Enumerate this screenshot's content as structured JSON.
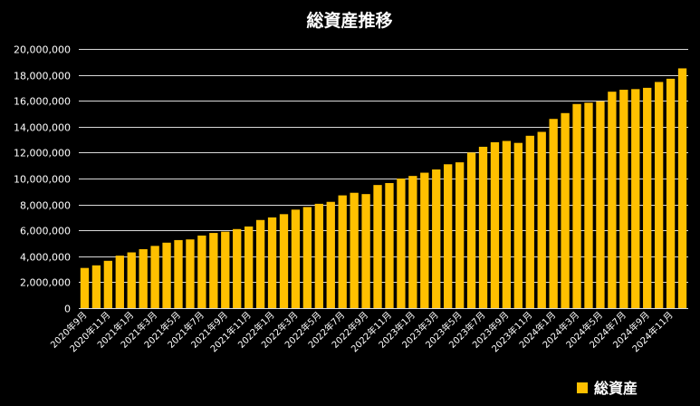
{
  "chart_data": {
    "type": "bar",
    "title": "総資産推移",
    "xlabel": "",
    "ylabel": "",
    "ylim": [
      0,
      20000000
    ],
    "yticks": [
      "0",
      "2,000,000",
      "4,000,000",
      "6,000,000",
      "8,000,000",
      "10,000,000",
      "12,000,000",
      "14,000,000",
      "16,000,000",
      "18,000,000",
      "20,000,000"
    ],
    "grid": true,
    "legend_position": "bottom-right",
    "bar_color": "#FFC000",
    "categories": [
      "2020年9月",
      "2020年10月",
      "2020年11月",
      "2020年12月",
      "2021年1月",
      "2021年2月",
      "2021年3月",
      "2021年4月",
      "2021年5月",
      "2021年6月",
      "2021年7月",
      "2021年8月",
      "2021年9月",
      "2021年10月",
      "2021年11月",
      "2021年12月",
      "2022年1月",
      "2022年2月",
      "2022年3月",
      "2022年4月",
      "2022年5月",
      "2022年6月",
      "2022年7月",
      "2022年8月",
      "2022年9月",
      "2022年10月",
      "2022年11月",
      "2022年12月",
      "2023年1月",
      "2023年2月",
      "2023年3月",
      "2023年4月",
      "2023年5月",
      "2023年6月",
      "2023年7月",
      "2023年8月",
      "2023年9月",
      "2023年10月",
      "2023年11月",
      "2023年12月",
      "2024年1月",
      "2024年2月",
      "2024年3月",
      "2024年4月",
      "2024年5月",
      "2024年6月",
      "2024年7月",
      "2024年8月",
      "2024年9月",
      "2024年10月",
      "2024年11月",
      "2024年12月"
    ],
    "xtick_labels": [
      "2020年9月",
      "2020年11月",
      "2021年1月",
      "2021年3月",
      "2021年5月",
      "2021年7月",
      "2021年9月",
      "2021年11月",
      "2022年1月",
      "2022年3月",
      "2022年5月",
      "2022年7月",
      "2022年9月",
      "2022年11月",
      "2023年1月",
      "2023年3月",
      "2023年5月",
      "2023年7月",
      "2023年9月",
      "2023年11月",
      "2024年1月",
      "2024年3月",
      "2024年5月",
      "2024年7月",
      "2024年9月",
      "2024年11月"
    ],
    "series": [
      {
        "name": "総資産",
        "values": [
          3100000,
          3300000,
          3650000,
          4050000,
          4300000,
          4550000,
          4800000,
          5050000,
          5250000,
          5300000,
          5600000,
          5800000,
          5900000,
          6100000,
          6300000,
          6800000,
          7000000,
          7250000,
          7600000,
          7800000,
          8050000,
          8200000,
          8700000,
          8900000,
          8800000,
          9500000,
          9650000,
          10000000,
          10200000,
          10450000,
          10700000,
          11100000,
          11250000,
          12000000,
          12450000,
          12800000,
          12900000,
          12750000,
          13300000,
          13600000,
          14600000,
          15050000,
          15750000,
          15850000,
          15950000,
          16700000,
          16850000,
          16900000,
          17000000,
          17450000,
          17700000,
          18500000
        ]
      }
    ]
  }
}
